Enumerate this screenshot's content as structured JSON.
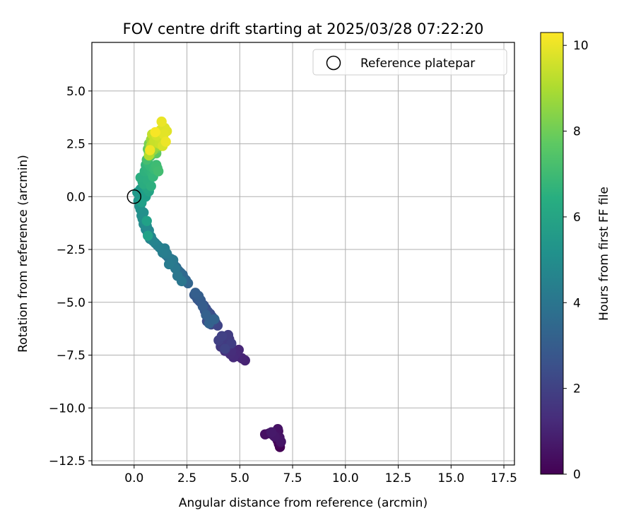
{
  "chart_data": {
    "type": "scatter",
    "title": "FOV centre drift starting at 2025/03/28 07:22:20",
    "xlabel": "Angular distance from reference (arcmin)",
    "ylabel": "Rotation from reference (arcmin)",
    "xlim": [
      -2.0,
      18.0
    ],
    "ylim": [
      -12.7,
      7.3
    ],
    "xticks": [
      0.0,
      2.5,
      5.0,
      7.5,
      10.0,
      12.5,
      15.0,
      17.5
    ],
    "xtick_labels": [
      "0.0",
      "2.5",
      "5.0",
      "7.5",
      "10.0",
      "12.5",
      "15.0",
      "17.5"
    ],
    "yticks": [
      5.0,
      2.5,
      0.0,
      -2.5,
      -5.0,
      -7.5,
      -10.0,
      -12.5
    ],
    "ytick_labels": [
      "5.0",
      "2.5",
      "0.0",
      "−2.5",
      "−5.0",
      "−7.5",
      "−10.0",
      "−12.5"
    ],
    "grid": true,
    "colorbar": {
      "label": "Hours from first FF file",
      "colormap": "viridis",
      "range": [
        0,
        10.3
      ],
      "ticks": [
        0,
        2,
        4,
        6,
        8,
        10
      ],
      "tick_labels": [
        "0",
        "2",
        "4",
        "6",
        "8",
        "10"
      ]
    },
    "legend": {
      "position": "top-right",
      "entries": [
        {
          "label": "Reference platepar",
          "marker": "open-circle",
          "color": "#000000"
        }
      ]
    },
    "reference_point": {
      "x": 0.0,
      "y": 0.0
    },
    "series": [
      {
        "x": [
          6.9,
          6.85,
          6.8,
          6.75,
          6.9,
          6.82,
          6.7,
          6.6,
          6.4,
          6.2,
          6.8,
          6.88,
          6.95,
          6.65,
          6.5
        ],
        "y": [
          -11.85,
          -11.7,
          -11.55,
          -11.45,
          -11.65,
          -11.1,
          -11.2,
          -11.3,
          -11.2,
          -11.25,
          -11.0,
          -11.4,
          -11.6,
          -11.35,
          -11.15
        ],
        "hours": [
          0.0,
          0.05,
          0.1,
          0.15,
          0.2,
          0.25,
          0.3,
          0.35,
          0.4,
          0.45,
          0.5,
          0.55,
          0.6,
          0.65,
          0.7
        ],
        "color_by": "hours"
      },
      {
        "x": [
          5.25,
          5.1,
          4.9,
          4.95,
          4.8,
          4.7,
          4.55,
          4.6,
          4.4,
          4.3,
          4.15,
          4.4,
          4.5,
          4.25,
          4.1,
          4.2,
          4.35,
          4.45,
          4.6,
          4.0,
          4.15,
          4.3
        ],
        "y": [
          -7.75,
          -7.65,
          -7.55,
          -7.25,
          -7.45,
          -7.6,
          -7.45,
          -7.3,
          -7.15,
          -7.3,
          -7.05,
          -6.9,
          -6.75,
          -6.95,
          -7.1,
          -6.85,
          -6.7,
          -6.55,
          -6.95,
          -6.8,
          -6.6,
          -7.2
        ],
        "hours": [
          1.0,
          1.05,
          1.1,
          1.15,
          1.2,
          1.25,
          1.3,
          1.35,
          1.4,
          1.45,
          1.5,
          1.55,
          1.6,
          1.65,
          1.7,
          1.75,
          1.8,
          1.85,
          1.9,
          1.95,
          2.0,
          2.05
        ],
        "color_by": "hours"
      },
      {
        "x": [
          3.95,
          3.85,
          3.75,
          3.65,
          3.55,
          3.45,
          3.6,
          3.7,
          3.5,
          3.4,
          3.3,
          3.35,
          3.2,
          3.1,
          3.0,
          2.95,
          2.85,
          3.15,
          3.25,
          3.05,
          2.9,
          3.4,
          3.55,
          3.8
        ],
        "y": [
          -6.1,
          -5.95,
          -5.85,
          -6.05,
          -5.75,
          -5.9,
          -5.55,
          -5.7,
          -5.45,
          -5.3,
          -5.15,
          -5.4,
          -5.05,
          -4.95,
          -4.85,
          -4.75,
          -4.65,
          -4.9,
          -5.2,
          -4.7,
          -4.55,
          -5.6,
          -6.0,
          -5.8
        ],
        "hours": [
          2.1,
          2.15,
          2.2,
          2.25,
          2.3,
          2.35,
          2.4,
          2.45,
          2.5,
          2.55,
          2.6,
          2.65,
          2.7,
          2.75,
          2.8,
          2.85,
          2.9,
          2.95,
          3.0,
          3.05,
          3.1,
          3.15,
          3.2,
          3.25
        ],
        "color_by": "hours"
      },
      {
        "x": [
          2.55,
          2.45,
          2.35,
          2.3,
          2.2,
          2.1,
          2.0,
          1.9,
          1.8,
          1.7,
          1.75,
          1.6,
          1.5,
          1.4,
          1.3,
          2.25,
          2.05,
          1.95,
          1.85,
          1.65,
          1.55,
          1.45,
          1.35,
          1.2,
          1.1,
          1.0
        ],
        "y": [
          -4.1,
          -3.95,
          -3.85,
          -3.7,
          -3.6,
          -3.5,
          -3.35,
          -3.25,
          -3.15,
          -3.05,
          -2.95,
          -2.85,
          -2.75,
          -2.6,
          -2.5,
          -4.0,
          -3.75,
          -3.4,
          -3.0,
          -3.2,
          -2.7,
          -2.45,
          -2.65,
          -2.4,
          -2.3,
          -2.2
        ],
        "hours": [
          3.3,
          3.35,
          3.4,
          3.45,
          3.5,
          3.55,
          3.6,
          3.65,
          3.7,
          3.75,
          3.8,
          3.85,
          3.9,
          3.95,
          4.0,
          4.05,
          4.1,
          4.15,
          4.2,
          4.25,
          4.3,
          4.35,
          4.4,
          4.45,
          4.5,
          4.55
        ],
        "color_by": "hours"
      },
      {
        "x": [
          0.9,
          0.75,
          0.8,
          0.65,
          0.7,
          0.55,
          0.6,
          0.45,
          0.5,
          0.4,
          0.35,
          0.45,
          0.3,
          0.25,
          0.35,
          0.2,
          0.3,
          0.25,
          0.15,
          0.3,
          0.4,
          0.5,
          0.45,
          0.55,
          0.35,
          0.6,
          0.65
        ],
        "y": [
          -2.1,
          -2.0,
          -1.9,
          -1.75,
          -1.6,
          -1.55,
          -1.4,
          -1.3,
          -1.2,
          -1.05,
          -0.9,
          -0.75,
          -0.6,
          -0.45,
          -0.3,
          -0.2,
          -0.1,
          0.05,
          0.2,
          0.35,
          0.45,
          0.3,
          0.15,
          0.0,
          -0.25,
          -1.15,
          -1.85
        ],
        "hours": [
          4.6,
          4.65,
          4.7,
          4.75,
          4.8,
          4.85,
          4.9,
          4.95,
          5.0,
          5.05,
          5.1,
          5.15,
          5.2,
          5.25,
          5.3,
          5.35,
          5.4,
          5.45,
          5.5,
          5.55,
          5.6,
          5.65,
          5.7,
          5.75,
          5.8,
          5.85,
          5.9
        ],
        "color_by": "hours"
      },
      {
        "x": [
          0.7,
          0.6,
          0.5,
          0.4,
          0.35,
          0.55,
          0.75,
          0.45,
          0.3,
          0.65,
          0.8,
          0.5,
          0.6,
          0.7,
          0.55,
          0.85,
          0.9,
          0.75,
          0.65,
          0.95,
          1.0,
          1.05,
          1.1,
          1.15
        ],
        "y": [
          0.25,
          0.4,
          0.55,
          0.7,
          0.85,
          0.95,
          1.05,
          0.6,
          0.9,
          0.75,
          0.5,
          1.2,
          1.35,
          1.25,
          1.5,
          1.1,
          0.95,
          1.45,
          1.6,
          1.3,
          1.4,
          1.5,
          1.35,
          1.2
        ],
        "hours": [
          6.0,
          6.05,
          6.1,
          6.15,
          6.2,
          6.25,
          6.3,
          6.35,
          6.4,
          6.45,
          6.5,
          6.55,
          6.6,
          6.65,
          6.7,
          6.75,
          6.8,
          6.85,
          6.9,
          6.95,
          7.0,
          7.05,
          7.1,
          7.15
        ],
        "color_by": "hours"
      },
      {
        "x": [
          0.6,
          0.75,
          0.85,
          0.7,
          0.95,
          1.05,
          0.65,
          0.8,
          0.9,
          1.1,
          0.7,
          0.85,
          1.0,
          0.75,
          0.9,
          1.15,
          0.8,
          0.95,
          1.2,
          0.7
        ],
        "y": [
          1.75,
          1.9,
          2.0,
          2.1,
          2.15,
          2.05,
          2.25,
          2.35,
          2.45,
          2.3,
          2.5,
          2.6,
          2.55,
          2.0,
          2.2,
          2.4,
          2.7,
          2.65,
          2.5,
          1.95
        ],
        "hours": [
          7.2,
          7.3,
          7.4,
          7.5,
          7.6,
          7.7,
          7.8,
          7.9,
          8.0,
          8.1,
          8.2,
          8.3,
          8.4,
          8.5,
          8.6,
          8.7,
          8.8,
          8.9,
          9.0,
          9.1
        ],
        "color_by": "hours"
      },
      {
        "x": [
          0.8,
          0.9,
          1.0,
          1.1,
          0.85,
          0.95,
          1.2,
          1.3,
          1.15,
          1.05,
          1.35,
          1.25,
          1.45,
          1.55,
          1.4,
          1.3,
          1.5,
          0.75,
          1.0
        ],
        "y": [
          2.4,
          2.55,
          2.7,
          2.85,
          2.95,
          2.6,
          2.5,
          2.75,
          3.0,
          2.9,
          2.4,
          3.15,
          3.25,
          3.1,
          2.95,
          3.55,
          2.6,
          2.2,
          3.05
        ],
        "hours": [
          9.2,
          9.25,
          9.3,
          9.35,
          9.4,
          9.45,
          9.5,
          9.55,
          9.6,
          9.65,
          9.7,
          9.75,
          9.8,
          9.85,
          9.9,
          10.0,
          10.05,
          10.1,
          10.2
        ],
        "color_by": "hours"
      }
    ]
  }
}
